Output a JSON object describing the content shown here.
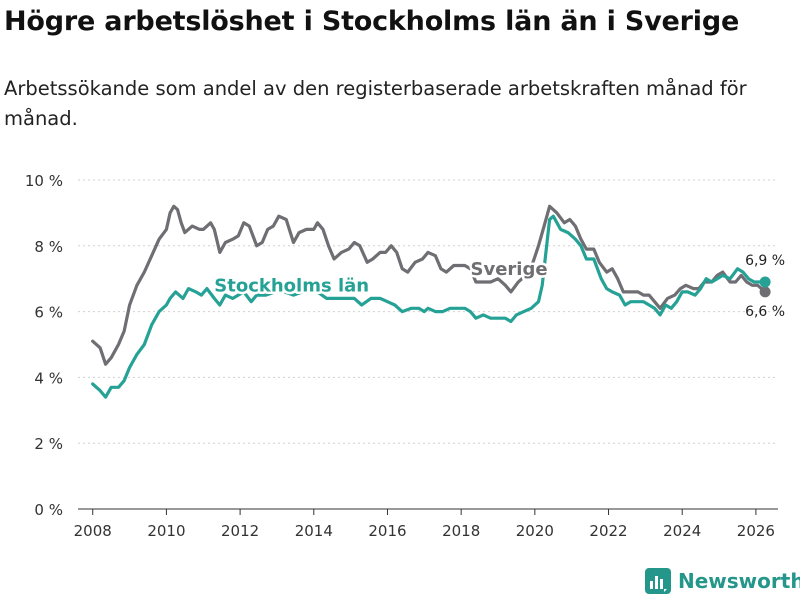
{
  "title": "Högre arbetslöshet i Stockholms län än i Sverige",
  "subtitle": "Arbetssökande som andel av den registerbaserade arbetskraften månad för månad.",
  "brand": {
    "name": "Newsworthy",
    "color": "#25968a"
  },
  "chart_data": {
    "type": "line",
    "ylim": [
      0,
      10
    ],
    "xlim": [
      2007.6,
      2026.6
    ],
    "yticks": [
      0,
      2,
      4,
      6,
      8,
      10
    ],
    "ytick_labels": [
      "0 %",
      "2 %",
      "4 %",
      "6 %",
      "8 %",
      "10 %"
    ],
    "xticks": [
      2008,
      2010,
      2012,
      2014,
      2016,
      2018,
      2020,
      2022,
      2024,
      2026
    ],
    "xtick_labels": [
      "2008",
      "2010",
      "2012",
      "2014",
      "2016",
      "2018",
      "2020",
      "2022",
      "2024",
      "2026"
    ],
    "grid": "horizontal dashed",
    "series": [
      {
        "name": "Sverige",
        "color": "#6e6e73",
        "end_label": "6,6 %",
        "points": [
          [
            2008.0,
            5.1
          ],
          [
            2008.2,
            4.9
          ],
          [
            2008.35,
            4.4
          ],
          [
            2008.5,
            4.6
          ],
          [
            2008.7,
            5.0
          ],
          [
            2008.85,
            5.4
          ],
          [
            2009.0,
            6.2
          ],
          [
            2009.2,
            6.8
          ],
          [
            2009.4,
            7.2
          ],
          [
            2009.6,
            7.7
          ],
          [
            2009.8,
            8.2
          ],
          [
            2010.0,
            8.5
          ],
          [
            2010.1,
            9.0
          ],
          [
            2010.2,
            9.2
          ],
          [
            2010.3,
            9.1
          ],
          [
            2010.4,
            8.7
          ],
          [
            2010.5,
            8.4
          ],
          [
            2010.7,
            8.6
          ],
          [
            2010.9,
            8.5
          ],
          [
            2011.0,
            8.5
          ],
          [
            2011.2,
            8.7
          ],
          [
            2011.3,
            8.5
          ],
          [
            2011.45,
            7.8
          ],
          [
            2011.6,
            8.1
          ],
          [
            2011.8,
            8.2
          ],
          [
            2011.95,
            8.3
          ],
          [
            2012.1,
            8.7
          ],
          [
            2012.25,
            8.6
          ],
          [
            2012.45,
            8.0
          ],
          [
            2012.6,
            8.1
          ],
          [
            2012.75,
            8.5
          ],
          [
            2012.9,
            8.6
          ],
          [
            2013.05,
            8.9
          ],
          [
            2013.25,
            8.8
          ],
          [
            2013.45,
            8.1
          ],
          [
            2013.6,
            8.4
          ],
          [
            2013.8,
            8.5
          ],
          [
            2014.0,
            8.5
          ],
          [
            2014.1,
            8.7
          ],
          [
            2014.25,
            8.5
          ],
          [
            2014.4,
            8.0
          ],
          [
            2014.55,
            7.6
          ],
          [
            2014.75,
            7.8
          ],
          [
            2014.95,
            7.9
          ],
          [
            2015.1,
            8.1
          ],
          [
            2015.25,
            8.0
          ],
          [
            2015.45,
            7.5
          ],
          [
            2015.6,
            7.6
          ],
          [
            2015.8,
            7.8
          ],
          [
            2015.95,
            7.8
          ],
          [
            2016.1,
            8.0
          ],
          [
            2016.25,
            7.8
          ],
          [
            2016.4,
            7.3
          ],
          [
            2016.55,
            7.2
          ],
          [
            2016.75,
            7.5
          ],
          [
            2016.95,
            7.6
          ],
          [
            2017.1,
            7.8
          ],
          [
            2017.3,
            7.7
          ],
          [
            2017.45,
            7.3
          ],
          [
            2017.6,
            7.2
          ],
          [
            2017.8,
            7.4
          ],
          [
            2017.95,
            7.4
          ],
          [
            2018.1,
            7.4
          ],
          [
            2018.25,
            7.3
          ],
          [
            2018.4,
            6.9
          ],
          [
            2018.6,
            6.9
          ],
          [
            2018.8,
            6.9
          ],
          [
            2019.0,
            7.0
          ],
          [
            2019.2,
            6.8
          ],
          [
            2019.35,
            6.6
          ],
          [
            2019.55,
            6.9
          ],
          [
            2019.75,
            7.1
          ],
          [
            2019.95,
            7.5
          ],
          [
            2020.1,
            8.0
          ],
          [
            2020.25,
            8.6
          ],
          [
            2020.4,
            9.2
          ],
          [
            2020.6,
            9.0
          ],
          [
            2020.8,
            8.7
          ],
          [
            2020.95,
            8.8
          ],
          [
            2021.1,
            8.6
          ],
          [
            2021.25,
            8.2
          ],
          [
            2021.4,
            7.9
          ],
          [
            2021.6,
            7.9
          ],
          [
            2021.75,
            7.5
          ],
          [
            2021.95,
            7.2
          ],
          [
            2022.1,
            7.3
          ],
          [
            2022.25,
            7.0
          ],
          [
            2022.4,
            6.6
          ],
          [
            2022.6,
            6.6
          ],
          [
            2022.8,
            6.6
          ],
          [
            2022.95,
            6.5
          ],
          [
            2023.1,
            6.5
          ],
          [
            2023.25,
            6.3
          ],
          [
            2023.4,
            6.1
          ],
          [
            2023.6,
            6.4
          ],
          [
            2023.8,
            6.5
          ],
          [
            2023.95,
            6.7
          ],
          [
            2024.1,
            6.8
          ],
          [
            2024.3,
            6.7
          ],
          [
            2024.45,
            6.7
          ],
          [
            2024.6,
            6.9
          ],
          [
            2024.8,
            6.9
          ],
          [
            2024.95,
            7.1
          ],
          [
            2025.1,
            7.2
          ],
          [
            2025.3,
            6.9
          ],
          [
            2025.45,
            6.9
          ],
          [
            2025.6,
            7.1
          ],
          [
            2025.75,
            6.9
          ],
          [
            2025.9,
            6.8
          ],
          [
            2026.05,
            6.8
          ],
          [
            2026.25,
            6.6
          ]
        ]
      },
      {
        "name": "Stockholms län",
        "color": "#25a295",
        "end_label": "6,9 %",
        "points": [
          [
            2008.0,
            3.8
          ],
          [
            2008.2,
            3.6
          ],
          [
            2008.35,
            3.4
          ],
          [
            2008.5,
            3.7
          ],
          [
            2008.7,
            3.7
          ],
          [
            2008.85,
            3.9
          ],
          [
            2009.0,
            4.3
          ],
          [
            2009.2,
            4.7
          ],
          [
            2009.4,
            5.0
          ],
          [
            2009.6,
            5.6
          ],
          [
            2009.8,
            6.0
          ],
          [
            2010.0,
            6.2
          ],
          [
            2010.1,
            6.4
          ],
          [
            2010.25,
            6.6
          ],
          [
            2010.45,
            6.4
          ],
          [
            2010.6,
            6.7
          ],
          [
            2010.8,
            6.6
          ],
          [
            2010.95,
            6.5
          ],
          [
            2011.1,
            6.7
          ],
          [
            2011.3,
            6.4
          ],
          [
            2011.45,
            6.2
          ],
          [
            2011.6,
            6.5
          ],
          [
            2011.8,
            6.4
          ],
          [
            2011.95,
            6.5
          ],
          [
            2012.1,
            6.6
          ],
          [
            2012.3,
            6.3
          ],
          [
            2012.45,
            6.5
          ],
          [
            2012.7,
            6.5
          ],
          [
            2012.95,
            6.6
          ],
          [
            2013.2,
            6.6
          ],
          [
            2013.45,
            6.5
          ],
          [
            2013.7,
            6.6
          ],
          [
            2013.9,
            6.6
          ],
          [
            2014.1,
            6.6
          ],
          [
            2014.35,
            6.4
          ],
          [
            2014.6,
            6.4
          ],
          [
            2014.9,
            6.4
          ],
          [
            2015.1,
            6.4
          ],
          [
            2015.3,
            6.2
          ],
          [
            2015.55,
            6.4
          ],
          [
            2015.8,
            6.4
          ],
          [
            2016.0,
            6.3
          ],
          [
            2016.2,
            6.2
          ],
          [
            2016.4,
            6.0
          ],
          [
            2016.65,
            6.1
          ],
          [
            2016.85,
            6.1
          ],
          [
            2017.0,
            6.0
          ],
          [
            2017.1,
            6.1
          ],
          [
            2017.3,
            6.0
          ],
          [
            2017.5,
            6.0
          ],
          [
            2017.7,
            6.1
          ],
          [
            2017.9,
            6.1
          ],
          [
            2018.1,
            6.1
          ],
          [
            2018.25,
            6.0
          ],
          [
            2018.4,
            5.8
          ],
          [
            2018.6,
            5.9
          ],
          [
            2018.8,
            5.8
          ],
          [
            2019.0,
            5.8
          ],
          [
            2019.2,
            5.8
          ],
          [
            2019.35,
            5.7
          ],
          [
            2019.5,
            5.9
          ],
          [
            2019.7,
            6.0
          ],
          [
            2019.9,
            6.1
          ],
          [
            2020.1,
            6.3
          ],
          [
            2020.2,
            6.8
          ],
          [
            2020.3,
            7.8
          ],
          [
            2020.4,
            8.8
          ],
          [
            2020.5,
            8.9
          ],
          [
            2020.7,
            8.5
          ],
          [
            2020.9,
            8.4
          ],
          [
            2021.1,
            8.2
          ],
          [
            2021.25,
            8.0
          ],
          [
            2021.4,
            7.6
          ],
          [
            2021.6,
            7.6
          ],
          [
            2021.8,
            7.0
          ],
          [
            2021.95,
            6.7
          ],
          [
            2022.1,
            6.6
          ],
          [
            2022.3,
            6.5
          ],
          [
            2022.45,
            6.2
          ],
          [
            2022.6,
            6.3
          ],
          [
            2022.8,
            6.3
          ],
          [
            2022.95,
            6.3
          ],
          [
            2023.1,
            6.2
          ],
          [
            2023.25,
            6.1
          ],
          [
            2023.4,
            5.9
          ],
          [
            2023.55,
            6.2
          ],
          [
            2023.7,
            6.1
          ],
          [
            2023.85,
            6.3
          ],
          [
            2024.0,
            6.6
          ],
          [
            2024.15,
            6.6
          ],
          [
            2024.35,
            6.5
          ],
          [
            2024.5,
            6.7
          ],
          [
            2024.65,
            7.0
          ],
          [
            2024.8,
            6.9
          ],
          [
            2024.95,
            7.0
          ],
          [
            2025.1,
            7.1
          ],
          [
            2025.3,
            7.0
          ],
          [
            2025.5,
            7.3
          ],
          [
            2025.65,
            7.2
          ],
          [
            2025.8,
            7.0
          ],
          [
            2025.95,
            6.9
          ],
          [
            2026.1,
            6.9
          ],
          [
            2026.25,
            6.9
          ]
        ]
      }
    ],
    "annotations": [
      {
        "text": "Sverige",
        "series": "Sverige",
        "x": 2019.3,
        "y": 7.3
      },
      {
        "text": "Stockholms län",
        "series": "Stockholms län",
        "x": 2013.4,
        "y": 6.8
      }
    ]
  }
}
